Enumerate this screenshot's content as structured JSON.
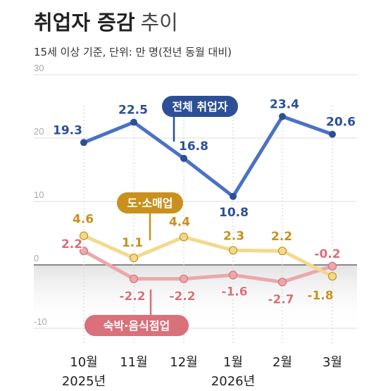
{
  "header": {
    "title_bold": "취업자 증감",
    "title_light": "추이",
    "subtitle": "15세 이상 기준, 단위: 만 명(전년 동월 대비)"
  },
  "chart_data": {
    "type": "line",
    "categories": [
      "10월",
      "11월",
      "12월",
      "1월",
      "2월",
      "3월"
    ],
    "year_labels": [
      {
        "label": "2025년",
        "index": 0
      },
      {
        "label": "2026년",
        "index": 3
      }
    ],
    "ylim": [
      -10,
      30
    ],
    "yticks": [
      "30",
      "20",
      "10",
      "0",
      "-10"
    ],
    "grid": true,
    "series": [
      {
        "name": "전체 취업자",
        "color": "#4a72c4",
        "label_color": "#2c4f96",
        "values": [
          19.3,
          22.5,
          16.8,
          10.8,
          23.4,
          20.6
        ],
        "labels": [
          "19.3",
          "22.5",
          "16.8",
          "10.8",
          "23.4",
          "20.6"
        ]
      },
      {
        "name": "도·소매업",
        "color": "#f2d98c",
        "label_color": "#c9901e",
        "values": [
          4.6,
          1.1,
          4.4,
          2.3,
          2.2,
          -1.8
        ],
        "labels": [
          "4.6",
          "1.1",
          "4.4",
          "2.3",
          "2.2",
          "-1.8"
        ]
      },
      {
        "name": "숙박·음식점업",
        "color": "#eba8ad",
        "label_color": "#d9707a",
        "values": [
          2.2,
          -2.2,
          -2.2,
          -1.6,
          -2.7,
          -0.2
        ],
        "labels": [
          "2.2",
          "-2.2",
          "-2.2",
          "-1.6",
          "-2.7",
          "-0.2"
        ]
      }
    ]
  }
}
